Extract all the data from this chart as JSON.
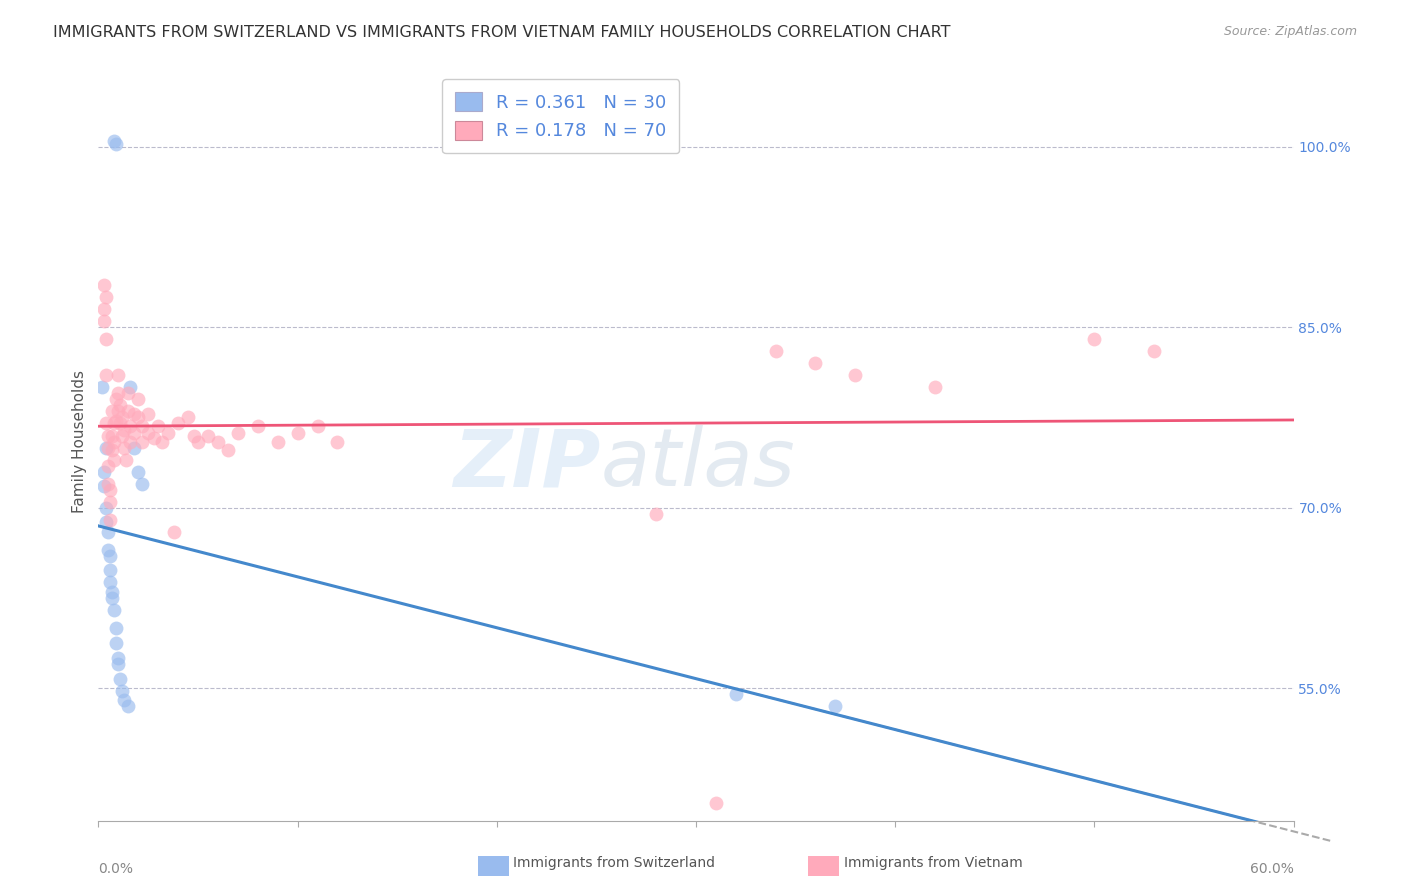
{
  "title": "IMMIGRANTS FROM SWITZERLAND VS IMMIGRANTS FROM VIETNAM FAMILY HOUSEHOLDS CORRELATION CHART",
  "source": "Source: ZipAtlas.com",
  "ylabel": "Family Households",
  "right_yticks": [
    "100.0%",
    "85.0%",
    "70.0%",
    "55.0%"
  ],
  "right_ytick_vals": [
    1.0,
    0.85,
    0.7,
    0.55
  ],
  "background_color": "#ffffff",
  "grid_color": "#bbbbcc",
  "watermark_text": "ZIPatlas",
  "xlim": [
    0.0,
    0.6
  ],
  "ylim": [
    0.44,
    1.07
  ],
  "switzerland_x": [
    0.008,
    0.009,
    0.002,
    0.004,
    0.003,
    0.003,
    0.004,
    0.004,
    0.005,
    0.005,
    0.006,
    0.006,
    0.006,
    0.007,
    0.007,
    0.008,
    0.009,
    0.009,
    0.01,
    0.01,
    0.011,
    0.012,
    0.013,
    0.015,
    0.016,
    0.018,
    0.02,
    0.022,
    0.32,
    0.37
  ],
  "switzerland_y": [
    1.005,
    1.002,
    0.8,
    0.75,
    0.73,
    0.718,
    0.7,
    0.688,
    0.68,
    0.665,
    0.66,
    0.648,
    0.638,
    0.63,
    0.625,
    0.615,
    0.6,
    0.588,
    0.575,
    0.57,
    0.558,
    0.548,
    0.54,
    0.535,
    0.8,
    0.75,
    0.73,
    0.72,
    0.545,
    0.535
  ],
  "vietnam_x": [
    0.003,
    0.003,
    0.003,
    0.004,
    0.004,
    0.004,
    0.004,
    0.005,
    0.005,
    0.005,
    0.005,
    0.006,
    0.006,
    0.006,
    0.007,
    0.007,
    0.007,
    0.008,
    0.008,
    0.008,
    0.009,
    0.009,
    0.01,
    0.01,
    0.01,
    0.011,
    0.011,
    0.012,
    0.012,
    0.013,
    0.013,
    0.014,
    0.015,
    0.015,
    0.016,
    0.016,
    0.018,
    0.018,
    0.02,
    0.02,
    0.022,
    0.022,
    0.025,
    0.025,
    0.028,
    0.03,
    0.032,
    0.035,
    0.038,
    0.04,
    0.045,
    0.048,
    0.05,
    0.055,
    0.06,
    0.065,
    0.07,
    0.08,
    0.09,
    0.1,
    0.11,
    0.12,
    0.28,
    0.31,
    0.34,
    0.36,
    0.38,
    0.42,
    0.5,
    0.53
  ],
  "vietnam_y": [
    0.885,
    0.865,
    0.855,
    0.875,
    0.84,
    0.81,
    0.77,
    0.76,
    0.75,
    0.735,
    0.72,
    0.715,
    0.705,
    0.69,
    0.78,
    0.76,
    0.748,
    0.77,
    0.755,
    0.74,
    0.79,
    0.772,
    0.81,
    0.795,
    0.78,
    0.785,
    0.77,
    0.775,
    0.76,
    0.765,
    0.75,
    0.74,
    0.795,
    0.78,
    0.768,
    0.755,
    0.778,
    0.762,
    0.79,
    0.775,
    0.768,
    0.755,
    0.778,
    0.762,
    0.758,
    0.768,
    0.755,
    0.762,
    0.68,
    0.77,
    0.775,
    0.76,
    0.755,
    0.76,
    0.755,
    0.748,
    0.762,
    0.768,
    0.755,
    0.762,
    0.768,
    0.755,
    0.695,
    0.455,
    0.83,
    0.82,
    0.81,
    0.8,
    0.84,
    0.83
  ],
  "swiss_line_color": "#4488cc",
  "viet_line_color": "#ee5577",
  "swiss_dot_color": "#99bbee",
  "viet_dot_color": "#ffaabb",
  "dot_size": 100,
  "dot_alpha": 0.65,
  "title_fontsize": 11.5,
  "axis_label_fontsize": 11,
  "tick_fontsize": 10,
  "source_fontsize": 9
}
